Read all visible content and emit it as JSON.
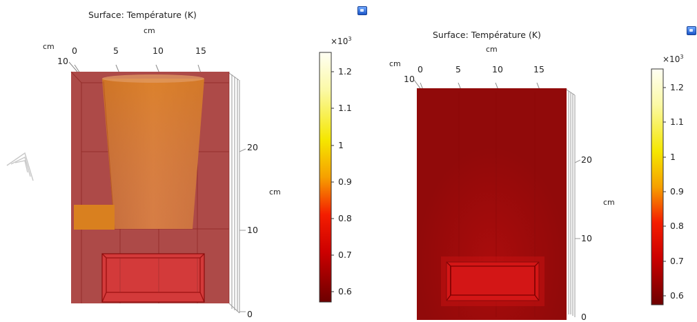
{
  "chart_data": [
    {
      "type": "heatmap",
      "title": "Surface: Température (K)",
      "x_axis": {
        "label": "cm",
        "ticks": [
          "0",
          "5",
          "10",
          "15"
        ]
      },
      "y_axis": {
        "label": "cm",
        "ticks": [
          "10"
        ]
      },
      "z_axis": {
        "label": "cm",
        "ticks": [
          "20",
          "10",
          "0"
        ]
      },
      "colorbar": {
        "multiplier": "×10",
        "exponent": "3",
        "ticks": [
          "1.2",
          "1.1",
          "1",
          "0.9",
          "0.8",
          "0.7",
          "0.6"
        ],
        "range": [
          0.57,
          1.25
        ]
      },
      "colors": {
        "high": "#fffff4",
        "mid": "#f5e700",
        "low": "#7a0000"
      }
    },
    {
      "type": "heatmap",
      "title": "Surface: Température (K)",
      "x_axis": {
        "label": "cm",
        "ticks": [
          "0",
          "5",
          "10",
          "15"
        ]
      },
      "y_axis": {
        "label": "cm",
        "ticks": [
          "10"
        ]
      },
      "z_axis": {
        "label": "cm",
        "ticks": [
          "20",
          "10",
          "0"
        ]
      },
      "colorbar": {
        "multiplier": "×10",
        "exponent": "3",
        "ticks": [
          "1.2",
          "1.1",
          "1",
          "0.9",
          "0.8",
          "0.7",
          "0.6"
        ],
        "range": [
          0.57,
          1.25
        ]
      },
      "colors": {
        "high": "#fffff4",
        "mid": "#f5e700",
        "low": "#7a0000"
      }
    }
  ],
  "icons": [
    "plot-settings-icon",
    "navigation-triad-icon"
  ]
}
